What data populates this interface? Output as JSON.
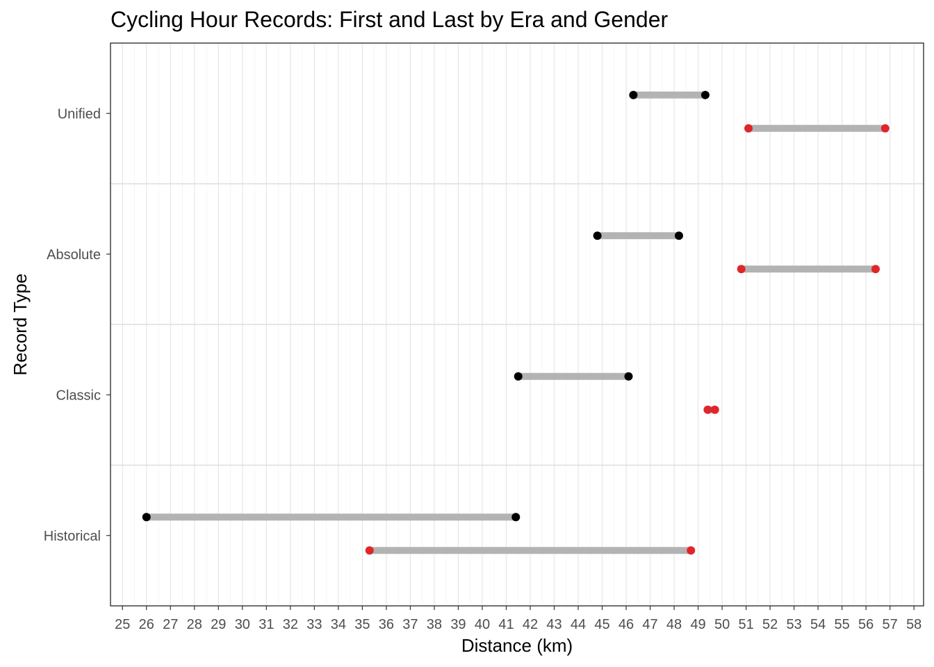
{
  "chart_data": {
    "type": "dumbbell",
    "title": "Cycling Hour Records: First and Last by Era and Gender",
    "xlabel": "Distance (km)",
    "ylabel": "Record Type",
    "xlim": [
      24.5,
      58.4
    ],
    "x_ticks": [
      25,
      26,
      27,
      28,
      29,
      30,
      31,
      32,
      33,
      34,
      35,
      36,
      37,
      38,
      39,
      40,
      41,
      42,
      43,
      44,
      45,
      46,
      47,
      48,
      49,
      50,
      51,
      52,
      53,
      54,
      55,
      56,
      57,
      58
    ],
    "categories": [
      "Unified",
      "Absolute",
      "Classic",
      "Historical"
    ],
    "grid": true,
    "colors": {
      "segment": "#b3b3b3",
      "black_series": "#000000",
      "red_series": "#e0262b",
      "grid": "#ebebeb",
      "panel_border": "#333333"
    },
    "series": [
      {
        "color": "black",
        "values": [
          {
            "category": "Unified",
            "first": 46.3,
            "last": 49.3
          },
          {
            "category": "Absolute",
            "first": 44.8,
            "last": 48.2
          },
          {
            "category": "Classic",
            "first": 41.5,
            "last": 46.1
          },
          {
            "category": "Historical",
            "first": 26.0,
            "last": 41.4
          }
        ]
      },
      {
        "color": "red",
        "values": [
          {
            "category": "Unified",
            "first": 51.1,
            "last": 56.8
          },
          {
            "category": "Absolute",
            "first": 50.8,
            "last": 56.4
          },
          {
            "category": "Classic",
            "first": 49.4,
            "last": 49.7
          },
          {
            "category": "Historical",
            "first": 35.3,
            "last": 48.7
          }
        ]
      }
    ]
  }
}
